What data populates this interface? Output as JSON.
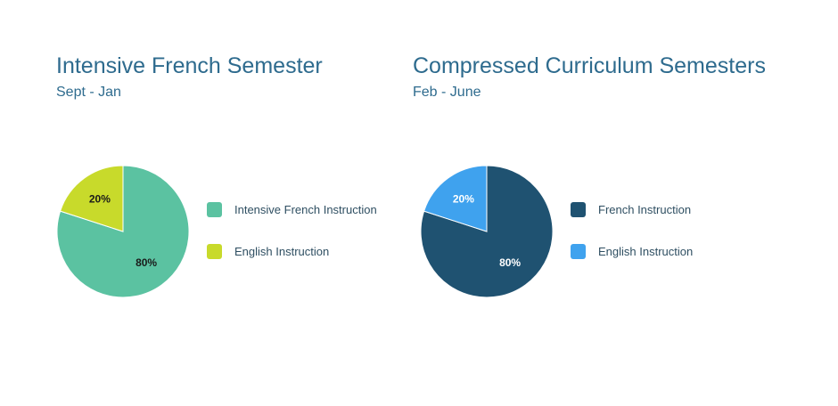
{
  "chart_data": [
    {
      "type": "pie",
      "title": "Intensive French Semester",
      "subtitle": "Sept - Jan",
      "slices": [
        {
          "label": "Intensive French Instruction",
          "value": 80,
          "value_label": "80%",
          "color": "#5bc2a1",
          "label_color": "#1a1a1a"
        },
        {
          "label": "English Instruction",
          "value": 20,
          "value_label": "20%",
          "color": "#c8da2b",
          "label_color": "#1a1a1a"
        }
      ],
      "legend": "right"
    },
    {
      "type": "pie",
      "title": "Compressed Curriculum Semesters",
      "subtitle": "Feb - June",
      "slices": [
        {
          "label": "French Instruction",
          "value": 80,
          "value_label": "80%",
          "color": "#1f5271",
          "label_color": "#ffffff"
        },
        {
          "label": "English Instruction",
          "value": 20,
          "value_label": "20%",
          "color": "#3fa2ee",
          "label_color": "#ffffff"
        }
      ],
      "legend": "right"
    }
  ]
}
